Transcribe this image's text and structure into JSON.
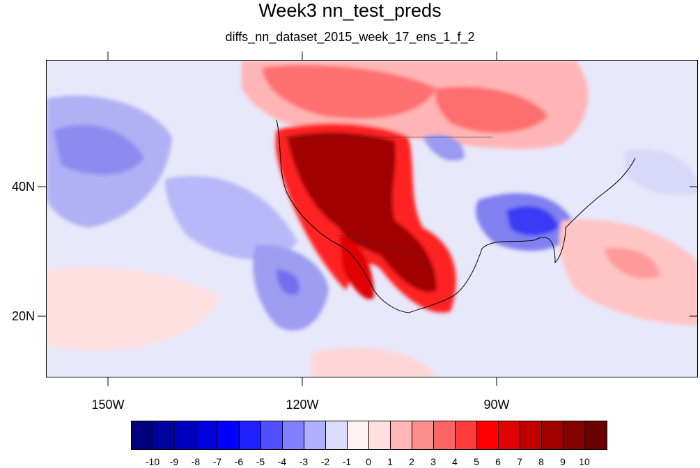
{
  "title": "Week3 nn_test_preds",
  "subtitle": "diffs_nn_dataset_2015_week_17_ens_1_f_2",
  "map": {
    "lat_labels": [
      "40N",
      "20N"
    ],
    "lon_labels": [
      "150W",
      "120W",
      "90W"
    ]
  },
  "colorbar": {
    "labels": [
      "-10",
      "-9",
      "-8",
      "-7",
      "-6",
      "-5",
      "-4",
      "-3",
      "-2",
      "-1",
      "0",
      "1",
      "2",
      "3",
      "4",
      "5",
      "6",
      "7",
      "8",
      "9",
      "10"
    ],
    "colors": [
      "#00007f",
      "#00009f",
      "#0000bf",
      "#0000df",
      "#0000ff",
      "#2020ff",
      "#4f4fff",
      "#7f7fff",
      "#afafff",
      "#dcdcff",
      "#fff2f2",
      "#ffe0e0",
      "#ffb7b7",
      "#ff8e8e",
      "#ff6464",
      "#ff3b3b",
      "#ff0000",
      "#e00000",
      "#c00000",
      "#a00000",
      "#850000",
      "#6a0000"
    ]
  }
}
